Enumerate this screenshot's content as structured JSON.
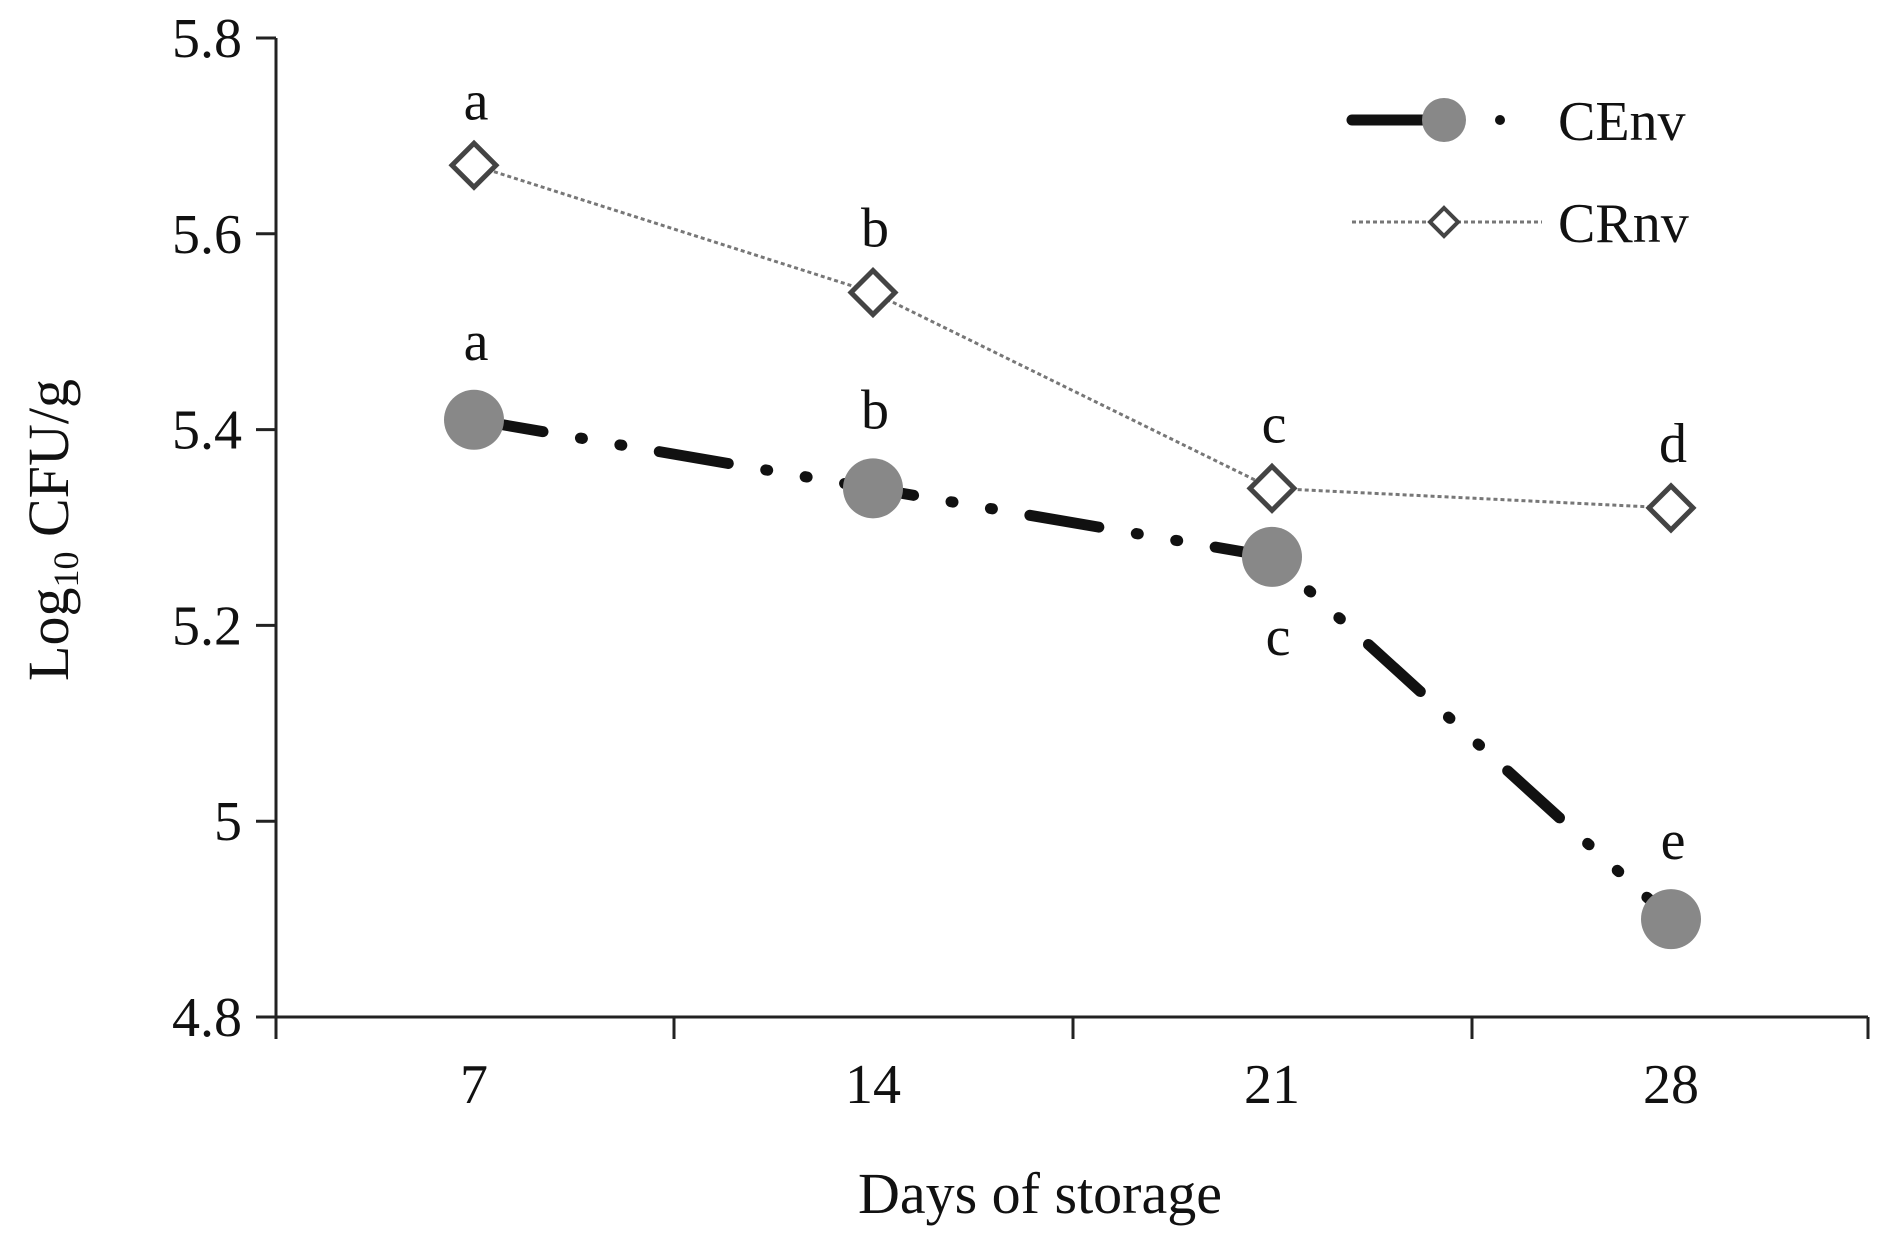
{
  "chart_data": {
    "type": "line",
    "xlabel": "Days of storage",
    "ylabel_main": "Log",
    "ylabel_sub": "10",
    "ylabel_rest": " CFU/g",
    "categories": [
      "7",
      "14",
      "21",
      "28"
    ],
    "ylim": [
      4.8,
      5.8
    ],
    "yticks": [
      4.8,
      5.0,
      5.2,
      5.4,
      5.6,
      5.8
    ],
    "ytick_labels": [
      "4.8",
      "5",
      "5.2",
      "5.4",
      "5.6",
      "5.8"
    ],
    "grid": false,
    "legend_position": "top-right",
    "series": [
      {
        "name": "CEnv",
        "values": [
          5.41,
          5.34,
          5.27,
          4.9
        ],
        "letters": [
          "a",
          "b",
          "c",
          "e"
        ],
        "letter_side": [
          "above",
          "above",
          "below",
          "above"
        ],
        "color": "#888888",
        "line_color": "#111111",
        "marker": "circle",
        "line_style": "dash-dot-dot"
      },
      {
        "name": "CRnv",
        "values": [
          5.67,
          5.54,
          5.34,
          5.32
        ],
        "letters": [
          "a",
          "b",
          "c",
          "d"
        ],
        "letter_side": [
          "above",
          "above",
          "above",
          "above"
        ],
        "color": "#444444",
        "line_color": "#777777",
        "marker": "diamond",
        "line_style": "dotted"
      }
    ]
  }
}
